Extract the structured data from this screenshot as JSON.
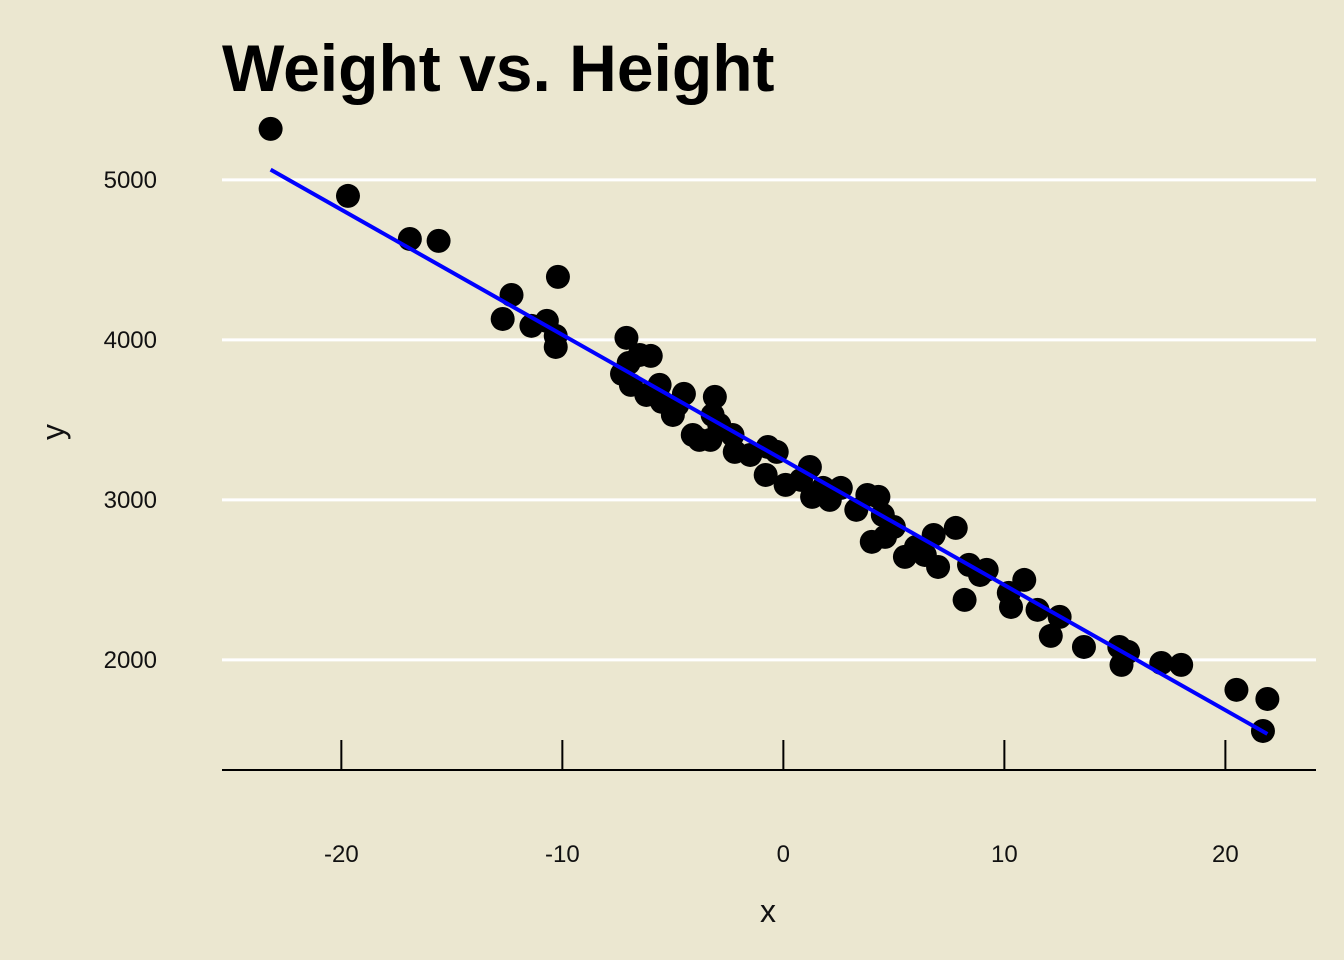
{
  "chart_data": {
    "type": "scatter",
    "title": "Weight vs. Height",
    "xlabel": "x",
    "ylabel": "y",
    "xlim": [
      -25.4,
      24.1
    ],
    "ylim": [
      1312,
      5500
    ],
    "xticks": [
      -20,
      -10,
      0,
      10,
      20
    ],
    "xtick_labels": [
      "-20",
      "-10",
      "0",
      "10",
      "20"
    ],
    "yticks": [
      2000,
      3000,
      4000,
      5000
    ],
    "ytick_labels": [
      "2000",
      "3000",
      "4000",
      "5000"
    ],
    "grid": "horizontal",
    "colors": {
      "background": "#ebe7d0",
      "points": "#000000",
      "fit_line": "#0000ff",
      "grid": "#ffffff"
    },
    "points": [
      [
        -23.2,
        5319
      ],
      [
        -19.7,
        4900
      ],
      [
        -16.9,
        4631
      ],
      [
        -15.6,
        4619
      ],
      [
        -12.7,
        4131
      ],
      [
        -12.3,
        4281
      ],
      [
        -11.4,
        4088
      ],
      [
        -10.7,
        4119
      ],
      [
        -10.2,
        4394
      ],
      [
        -10.3,
        4025
      ],
      [
        -10.3,
        3956
      ],
      [
        -7.1,
        4013
      ],
      [
        -7.3,
        3788
      ],
      [
        -6.9,
        3719
      ],
      [
        -7.0,
        3856
      ],
      [
        -6.5,
        3906
      ],
      [
        -6.0,
        3900
      ],
      [
        -6.2,
        3656
      ],
      [
        -5.6,
        3719
      ],
      [
        -5.5,
        3613
      ],
      [
        -5.0,
        3531
      ],
      [
        -4.5,
        3663
      ],
      [
        -4.8,
        3594
      ],
      [
        -4.1,
        3406
      ],
      [
        -3.8,
        3375
      ],
      [
        -3.3,
        3375
      ],
      [
        -3.1,
        3644
      ],
      [
        -3.2,
        3531
      ],
      [
        -2.9,
        3469
      ],
      [
        -2.3,
        3406
      ],
      [
        -2.2,
        3300
      ],
      [
        -1.5,
        3281
      ],
      [
        -0.8,
        3156
      ],
      [
        -0.7,
        3331
      ],
      [
        -0.3,
        3300
      ],
      [
        0.1,
        3094
      ],
      [
        0.8,
        3125
      ],
      [
        1.2,
        3206
      ],
      [
        1.3,
        3019
      ],
      [
        1.8,
        3075
      ],
      [
        2.1,
        3000
      ],
      [
        2.6,
        3075
      ],
      [
        3.3,
        2938
      ],
      [
        3.8,
        3031
      ],
      [
        4.3,
        3019
      ],
      [
        4.0,
        2738
      ],
      [
        4.5,
        2906
      ],
      [
        4.6,
        2769
      ],
      [
        5.0,
        2831
      ],
      [
        5.5,
        2644
      ],
      [
        6.0,
        2706
      ],
      [
        6.4,
        2656
      ],
      [
        6.8,
        2781
      ],
      [
        7.0,
        2581
      ],
      [
        7.8,
        2825
      ],
      [
        8.2,
        2375
      ],
      [
        8.4,
        2594
      ],
      [
        8.9,
        2531
      ],
      [
        9.2,
        2563
      ],
      [
        10.2,
        2419
      ],
      [
        10.3,
        2331
      ],
      [
        10.9,
        2500
      ],
      [
        11.5,
        2313
      ],
      [
        12.1,
        2150
      ],
      [
        12.5,
        2269
      ],
      [
        13.6,
        2081
      ],
      [
        15.2,
        2081
      ],
      [
        15.3,
        1969
      ],
      [
        15.6,
        2050
      ],
      [
        17.1,
        1981
      ],
      [
        18.0,
        1969
      ],
      [
        20.5,
        1813
      ],
      [
        21.9,
        1756
      ],
      [
        21.7,
        1556
      ]
    ],
    "fit_line": {
      "slope": -78.2,
      "intercept": 3250,
      "x_range": [
        -23.2,
        21.9
      ]
    }
  }
}
